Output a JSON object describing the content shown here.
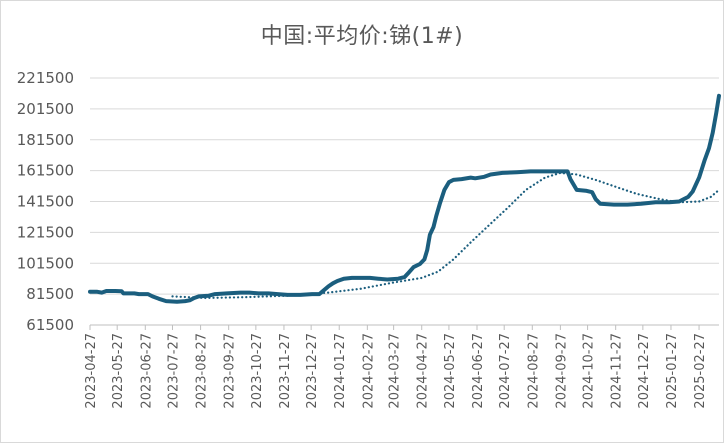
{
  "chart_data": {
    "type": "line",
    "title": "中国:平均价:锑(1#)",
    "ylim": [
      61500,
      221500
    ],
    "y_ticks": [
      61500,
      81500,
      101500,
      121500,
      141500,
      161500,
      181500,
      201500,
      221500
    ],
    "x_ticks": [
      "2023-04-27",
      "2023-05-27",
      "2023-06-27",
      "2023-07-27",
      "2023-08-27",
      "2023-09-27",
      "2023-10-27",
      "2023-11-27",
      "2023-12-27",
      "2024-01-27",
      "2024-02-27",
      "2024-03-27",
      "2024-04-27",
      "2024-05-27",
      "2024-06-27",
      "2024-07-27",
      "2024-08-27",
      "2024-09-27",
      "2024-10-27",
      "2024-11-27",
      "2024-12-27",
      "2025-01-27",
      "2025-02-27"
    ],
    "x_range": [
      "2023-04-27",
      "2025-03-21"
    ],
    "grid": "horizontal",
    "series": [
      {
        "style": "solid",
        "color": "#1b5e7e",
        "points": [
          [
            "2023-04-27",
            83000
          ],
          [
            "2023-05-05",
            83000
          ],
          [
            "2023-05-10",
            82500
          ],
          [
            "2023-05-15",
            83500
          ],
          [
            "2023-05-25",
            83500
          ],
          [
            "2023-06-01",
            83300
          ],
          [
            "2023-06-03",
            82000
          ],
          [
            "2023-06-15",
            82000
          ],
          [
            "2023-06-20",
            81500
          ],
          [
            "2023-06-30",
            81500
          ],
          [
            "2023-07-05",
            80000
          ],
          [
            "2023-07-12",
            78500
          ],
          [
            "2023-07-20",
            77000
          ],
          [
            "2023-08-01",
            76500
          ],
          [
            "2023-08-10",
            77000
          ],
          [
            "2023-08-15",
            77500
          ],
          [
            "2023-08-20",
            79000
          ],
          [
            "2023-08-25",
            80000
          ],
          [
            "2023-09-05",
            80500
          ],
          [
            "2023-09-12",
            81500
          ],
          [
            "2023-09-25",
            82000
          ],
          [
            "2023-10-10",
            82500
          ],
          [
            "2023-10-20",
            82500
          ],
          [
            "2023-10-30",
            82000
          ],
          [
            "2023-11-10",
            82000
          ],
          [
            "2023-11-20",
            81500
          ],
          [
            "2023-12-01",
            81000
          ],
          [
            "2023-12-15",
            81000
          ],
          [
            "2023-12-28",
            81500
          ],
          [
            "2024-01-05",
            81500
          ],
          [
            "2024-01-10",
            84000
          ],
          [
            "2024-01-15",
            86500
          ],
          [
            "2024-01-20",
            88500
          ],
          [
            "2024-01-25",
            90000
          ],
          [
            "2024-02-01",
            91500
          ],
          [
            "2024-02-10",
            92000
          ],
          [
            "2024-03-01",
            92000
          ],
          [
            "2024-03-10",
            91500
          ],
          [
            "2024-03-20",
            91000
          ],
          [
            "2024-04-01",
            91500
          ],
          [
            "2024-04-08",
            92500
          ],
          [
            "2024-04-12",
            95000
          ],
          [
            "2024-04-18",
            99000
          ],
          [
            "2024-04-25",
            101000
          ],
          [
            "2024-04-30",
            104000
          ],
          [
            "2024-05-03",
            110000
          ],
          [
            "2024-05-06",
            120000
          ],
          [
            "2024-05-10",
            125000
          ],
          [
            "2024-05-13",
            132000
          ],
          [
            "2024-05-17",
            140000
          ],
          [
            "2024-05-22",
            149000
          ],
          [
            "2024-05-27",
            154000
          ],
          [
            "2024-06-01",
            155500
          ],
          [
            "2024-06-10",
            156000
          ],
          [
            "2024-06-20",
            157000
          ],
          [
            "2024-06-25",
            156500
          ],
          [
            "2024-07-05",
            157500
          ],
          [
            "2024-07-12",
            159000
          ],
          [
            "2024-07-25",
            160000
          ],
          [
            "2024-08-10",
            160500
          ],
          [
            "2024-08-25",
            161000
          ],
          [
            "2024-09-15",
            161000
          ],
          [
            "2024-10-05",
            161000
          ],
          [
            "2024-10-08",
            156000
          ],
          [
            "2024-10-12",
            152000
          ],
          [
            "2024-10-15",
            149000
          ],
          [
            "2024-10-25",
            148500
          ],
          [
            "2024-11-01",
            147500
          ],
          [
            "2024-11-05",
            143000
          ],
          [
            "2024-11-10",
            140000
          ],
          [
            "2024-11-25",
            139500
          ],
          [
            "2024-12-10",
            139500
          ],
          [
            "2024-12-25",
            140000
          ],
          [
            "2025-01-10",
            141000
          ],
          [
            "2025-01-25",
            141000
          ],
          [
            "2025-02-05",
            141500
          ],
          [
            "2025-02-10",
            143000
          ],
          [
            "2025-02-15",
            144500
          ],
          [
            "2025-02-20",
            148000
          ],
          [
            "2025-02-27",
            157000
          ],
          [
            "2025-03-05",
            168000
          ],
          [
            "2025-03-10",
            176000
          ],
          [
            "2025-03-14",
            186000
          ],
          [
            "2025-03-18",
            199000
          ],
          [
            "2025-03-21",
            210000
          ]
        ]
      },
      {
        "style": "dotted",
        "color": "#1b5e7e",
        "points": [
          [
            "2023-07-27",
            80000
          ],
          [
            "2023-09-01",
            79000
          ],
          [
            "2023-10-15",
            79500
          ],
          [
            "2023-12-01",
            80500
          ],
          [
            "2024-01-15",
            82500
          ],
          [
            "2024-02-20",
            85000
          ],
          [
            "2024-03-27",
            89000
          ],
          [
            "2024-04-27",
            92000
          ],
          [
            "2024-05-15",
            96000
          ],
          [
            "2024-06-01",
            104000
          ],
          [
            "2024-06-20",
            115000
          ],
          [
            "2024-07-10",
            126000
          ],
          [
            "2024-08-01",
            138000
          ],
          [
            "2024-08-20",
            149000
          ],
          [
            "2024-09-10",
            157000
          ],
          [
            "2024-09-27",
            160000
          ],
          [
            "2024-10-15",
            159000
          ],
          [
            "2024-11-05",
            155500
          ],
          [
            "2024-11-27",
            151000
          ],
          [
            "2024-12-20",
            146500
          ],
          [
            "2025-01-15",
            143000
          ],
          [
            "2025-02-05",
            141000
          ],
          [
            "2025-02-27",
            141500
          ],
          [
            "2025-03-12",
            144500
          ],
          [
            "2025-03-21",
            149000
          ]
        ]
      }
    ]
  }
}
